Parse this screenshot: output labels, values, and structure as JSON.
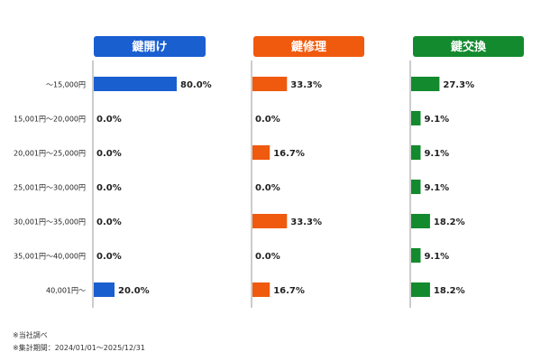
{
  "chart_data": {
    "type": "bar",
    "orientation": "horizontal",
    "categories": [
      "～15,000円",
      "15,001円～20,000円",
      "20,001円～25,000円",
      "25,001円～30,000円",
      "30,001円～35,000円",
      "35,001円～40,000円",
      "40,001円～"
    ],
    "series": [
      {
        "name": "鍵開け",
        "color": "#1a5fd0",
        "values": [
          80.0,
          0.0,
          0.0,
          0.0,
          0.0,
          0.0,
          20.0
        ]
      },
      {
        "name": "鍵修理",
        "color": "#f05a0e",
        "values": [
          33.3,
          0.0,
          16.7,
          0.0,
          33.3,
          0.0,
          16.7
        ]
      },
      {
        "name": "鍵交換",
        "color": "#138a2e",
        "values": [
          27.3,
          9.1,
          9.1,
          9.1,
          18.2,
          9.1,
          18.2
        ]
      }
    ],
    "xlim": [
      0,
      100
    ],
    "value_suffix": "%",
    "grid": false,
    "legend": "none"
  },
  "notes": [
    "※当社調べ",
    "※集計期間：2024/01/01～2025/12/31"
  ]
}
